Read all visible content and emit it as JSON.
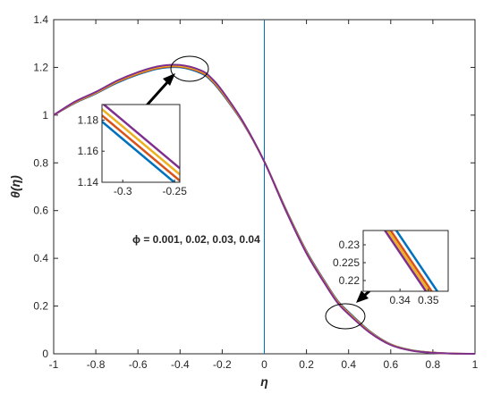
{
  "chart_data": {
    "type": "line",
    "title": "",
    "xlabel": "η",
    "ylabel": "θ(η)",
    "xlim": [
      -1,
      1
    ],
    "ylim": [
      0,
      1.4
    ],
    "xticks": [
      -1,
      -0.8,
      -0.6,
      -0.4,
      -0.2,
      0,
      0.2,
      0.4,
      0.6,
      0.8,
      1
    ],
    "xtick_labels": [
      "-1",
      "-0.8",
      "-0.6",
      "-0.4",
      "-0.2",
      "0",
      "0.2",
      "0.4",
      "0.6",
      "0.8",
      "1"
    ],
    "yticks": [
      0,
      0.2,
      0.4,
      0.6,
      0.8,
      1,
      1.2,
      1.4
    ],
    "ytick_labels": [
      "0",
      "0.2",
      "0.4",
      "0.6",
      "0.8",
      "1",
      "1.2",
      "1.4"
    ],
    "grid": false,
    "legend": "none",
    "annotation": "ϕ = 0.001, 0.02, 0.03, 0.04",
    "vertical_line_x": 0,
    "series": [
      {
        "color": "#0072BD",
        "x": [
          -1,
          -0.9,
          -0.8,
          -0.7,
          -0.6,
          -0.5,
          -0.4,
          -0.3,
          -0.25,
          -0.2,
          -0.1,
          0,
          0.1,
          0.2,
          0.3,
          0.35,
          0.4,
          0.5,
          0.6,
          0.7,
          0.8,
          0.9,
          1
        ],
        "y": [
          1,
          1.05,
          1.09,
          1.135,
          1.17,
          1.195,
          1.2,
          1.175,
          1.142,
          1.09,
          0.965,
          0.805,
          0.61,
          0.43,
          0.285,
          0.22,
          0.175,
          0.095,
          0.04,
          0.015,
          0.005,
          0.001,
          0
        ]
      },
      {
        "color": "#D95319",
        "x": [
          -1,
          -0.9,
          -0.8,
          -0.7,
          -0.6,
          -0.5,
          -0.4,
          -0.3,
          -0.25,
          -0.2,
          -0.1,
          0,
          0.1,
          0.2,
          0.3,
          0.35,
          0.4,
          0.5,
          0.6,
          0.7,
          0.8,
          0.9,
          1
        ],
        "y": [
          1,
          1.052,
          1.092,
          1.138,
          1.173,
          1.198,
          1.203,
          1.179,
          1.146,
          1.094,
          0.967,
          0.805,
          0.608,
          0.427,
          0.282,
          0.217,
          0.172,
          0.093,
          0.039,
          0.014,
          0.005,
          0.001,
          0
        ]
      },
      {
        "color": "#EDB120",
        "x": [
          -1,
          -0.9,
          -0.8,
          -0.7,
          -0.6,
          -0.5,
          -0.4,
          -0.3,
          -0.25,
          -0.2,
          -0.1,
          0,
          0.1,
          0.2,
          0.3,
          0.35,
          0.4,
          0.5,
          0.6,
          0.7,
          0.8,
          0.9,
          1
        ],
        "y": [
          1,
          1.054,
          1.094,
          1.141,
          1.176,
          1.201,
          1.206,
          1.183,
          1.15,
          1.098,
          0.969,
          0.805,
          0.606,
          0.424,
          0.279,
          0.214,
          0.169,
          0.091,
          0.038,
          0.014,
          0.004,
          0.001,
          0
        ]
      },
      {
        "color": "#7E2F8E",
        "x": [
          -1,
          -0.9,
          -0.8,
          -0.7,
          -0.6,
          -0.5,
          -0.4,
          -0.3,
          -0.25,
          -0.2,
          -0.1,
          0,
          0.1,
          0.2,
          0.3,
          0.35,
          0.4,
          0.5,
          0.6,
          0.7,
          0.8,
          0.9,
          1
        ],
        "y": [
          1,
          1.056,
          1.097,
          1.144,
          1.18,
          1.205,
          1.21,
          1.187,
          1.154,
          1.102,
          0.971,
          0.805,
          0.604,
          0.421,
          0.276,
          0.211,
          0.166,
          0.089,
          0.037,
          0.013,
          0.004,
          0.001,
          0
        ]
      }
    ],
    "insets": [
      {
        "xlim": [
          -0.32,
          -0.245
        ],
        "ylim": [
          1.14,
          1.19
        ],
        "xticks": [
          -0.3,
          -0.25
        ],
        "xtick_labels": [
          "-0.3",
          "-0.25"
        ],
        "yticks": [
          1.14,
          1.16,
          1.18
        ],
        "ytick_labels": [
          "1.14",
          "1.16",
          "1.18"
        ],
        "series": [
          {
            "color": "#0072BD",
            "x": [
              -0.32,
              -0.245
            ],
            "y": [
              1.179,
              1.137
            ]
          },
          {
            "color": "#D95319",
            "x": [
              -0.32,
              -0.245
            ],
            "y": [
              1.183,
              1.141
            ]
          },
          {
            "color": "#EDB120",
            "x": [
              -0.32,
              -0.245
            ],
            "y": [
              1.187,
              1.145
            ]
          },
          {
            "color": "#7E2F8E",
            "x": [
              -0.32,
              -0.245
            ],
            "y": [
              1.191,
              1.149
            ]
          }
        ]
      },
      {
        "xlim": [
          0.327,
          0.357
        ],
        "ylim": [
          0.217,
          0.234
        ],
        "xticks": [
          0.34,
          0.35
        ],
        "xtick_labels": [
          "0.34",
          "0.35"
        ],
        "yticks": [
          0.22,
          0.225,
          0.23
        ],
        "ytick_labels": [
          "0.22",
          "0.225",
          "0.23"
        ],
        "series": [
          {
            "color": "#0072BD",
            "x": [
              0.337,
              0.354
            ],
            "y": [
              0.236,
              0.216
            ]
          },
          {
            "color": "#D95319",
            "x": [
              0.335,
              0.352
            ],
            "y": [
              0.236,
              0.216
            ]
          },
          {
            "color": "#EDB120",
            "x": [
              0.334,
              0.351
            ],
            "y": [
              0.236,
              0.216
            ]
          },
          {
            "color": "#7E2F8E",
            "x": [
              0.333,
              0.35
            ],
            "y": [
              0.236,
              0.216
            ]
          }
        ]
      }
    ]
  }
}
